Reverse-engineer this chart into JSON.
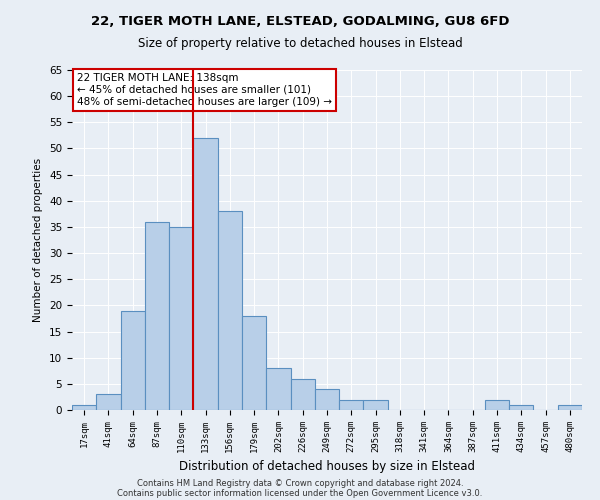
{
  "title1": "22, TIGER MOTH LANE, ELSTEAD, GODALMING, GU8 6FD",
  "title2": "Size of property relative to detached houses in Elstead",
  "xlabel": "Distribution of detached houses by size in Elstead",
  "ylabel": "Number of detached properties",
  "bins": [
    "17sqm",
    "41sqm",
    "64sqm",
    "87sqm",
    "110sqm",
    "133sqm",
    "156sqm",
    "179sqm",
    "202sqm",
    "226sqm",
    "249sqm",
    "272sqm",
    "295sqm",
    "318sqm",
    "341sqm",
    "364sqm",
    "387sqm",
    "411sqm",
    "434sqm",
    "457sqm",
    "480sqm"
  ],
  "counts": [
    1,
    3,
    19,
    36,
    35,
    52,
    38,
    18,
    8,
    6,
    4,
    2,
    2,
    0,
    0,
    0,
    0,
    2,
    1,
    0,
    1
  ],
  "bar_color": "#b8cfe8",
  "bar_edge_color": "#5a8fc0",
  "vline_color": "#cc0000",
  "vline_x_index": 5,
  "annotation_text": "22 TIGER MOTH LANE: 138sqm\n← 45% of detached houses are smaller (101)\n48% of semi-detached houses are larger (109) →",
  "annotation_box_color": "#ffffff",
  "annotation_box_edge_color": "#cc0000",
  "background_color": "#e8eef5",
  "footer1": "Contains HM Land Registry data © Crown copyright and database right 2024.",
  "footer2": "Contains public sector information licensed under the Open Government Licence v3.0.",
  "ylim": [
    0,
    65
  ],
  "yticks": [
    0,
    5,
    10,
    15,
    20,
    25,
    30,
    35,
    40,
    45,
    50,
    55,
    60,
    65
  ]
}
